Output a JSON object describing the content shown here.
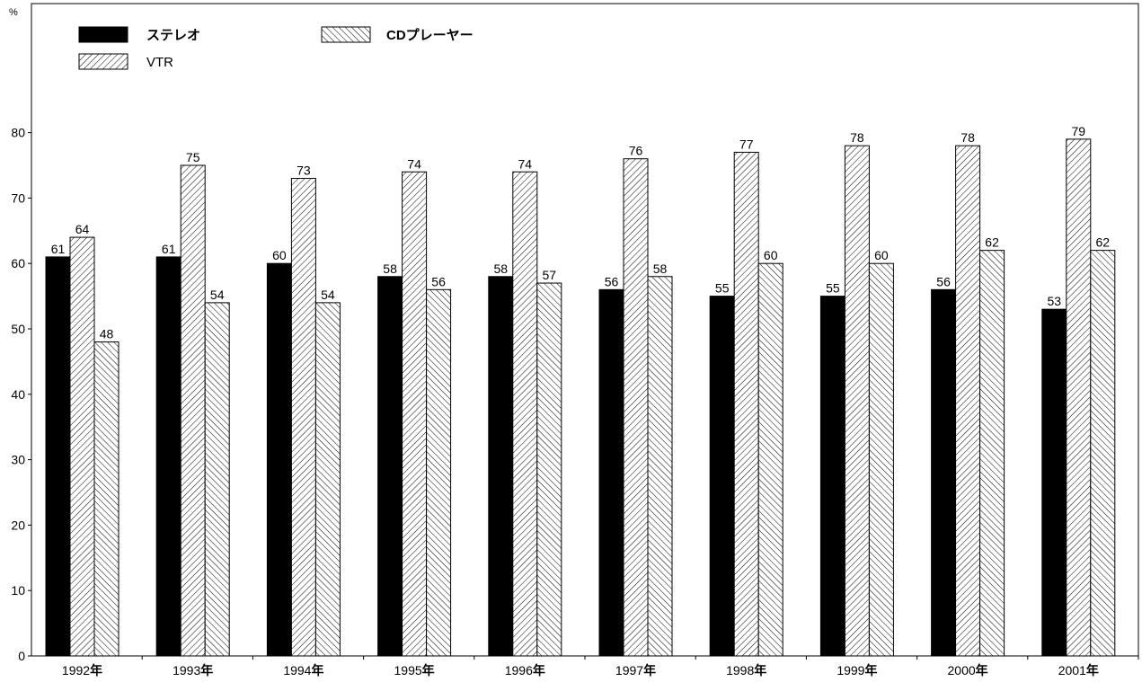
{
  "chart_data": {
    "type": "bar",
    "unit_label": "%",
    "categories": [
      "1992年",
      "1993年",
      "1994年",
      "1995年",
      "1996年",
      "1997年",
      "1998年",
      "1999年",
      "2000年",
      "2001年"
    ],
    "series": [
      {
        "name": "ステレオ",
        "pattern": "solid",
        "color": "#000000",
        "values": [
          61,
          61,
          60,
          58,
          58,
          56,
          55,
          55,
          56,
          53
        ]
      },
      {
        "name": "VTR",
        "pattern": "hatch-forward",
        "color": "#000000",
        "values": [
          64,
          75,
          73,
          74,
          74,
          76,
          77,
          78,
          78,
          79
        ]
      },
      {
        "name": "CDプレーヤー",
        "pattern": "hatch-back",
        "color": "#000000",
        "values": [
          48,
          54,
          54,
          56,
          57,
          58,
          60,
          60,
          62,
          62
        ]
      }
    ],
    "ylim": [
      0,
      100
    ],
    "yticks": [
      0,
      10,
      20,
      30,
      40,
      50,
      60,
      70,
      80
    ],
    "data_labels": true,
    "grid": false,
    "legend_position": "top-left"
  }
}
